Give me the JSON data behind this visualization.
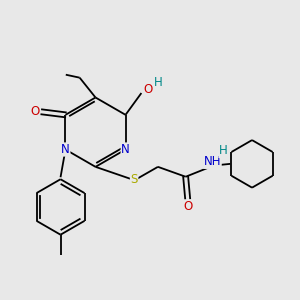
{
  "background_color": "#e8e8e8",
  "atom_colors": {
    "C": "#000000",
    "N": "#0000cc",
    "O": "#cc0000",
    "S": "#aaaa00",
    "H": "#008888"
  },
  "bond_color": "#000000",
  "bond_lw": 1.3,
  "font_size": 8.5,
  "fig_size": [
    3.0,
    3.0
  ],
  "dpi": 100
}
